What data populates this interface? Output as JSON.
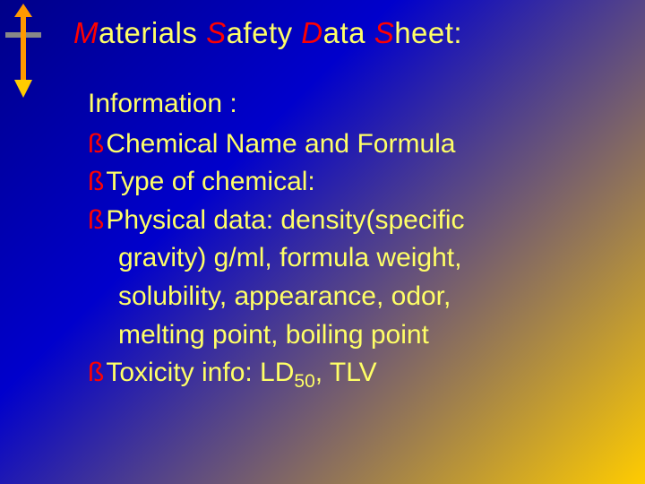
{
  "title": {
    "parts": [
      "M",
      "aterials ",
      "S",
      "afety ",
      "D",
      "ata ",
      "S",
      "heet:"
    ],
    "emphasis_indices": [
      0,
      2,
      4,
      6
    ],
    "emphasis_color": "#ff0000",
    "text_color": "#ffff66",
    "fontsize": 33
  },
  "body": {
    "intro": "Information :",
    "bullet_symbol": "ß",
    "bullet_color": "#ff0000",
    "items": [
      {
        "lines": [
          "Chemical Name and Formula"
        ]
      },
      {
        "lines": [
          "Type of chemical:"
        ]
      },
      {
        "lines": [
          "Physical data: density(specific",
          "gravity) g/ml, formula weight,",
          "solubility, appearance, odor,",
          "melting point, boiling point"
        ]
      },
      {
        "lines": [
          "Toxicity info:  LD",
          ", TLV"
        ],
        "inline": true,
        "subscript_after_first": "50"
      }
    ],
    "text_color": "#ffff66",
    "fontsize": 30
  },
  "decoration": {
    "arrow_color_top": "#888888",
    "arrow_color_shaft": "#ff9900",
    "arrow_color_head": "#ffcc00"
  },
  "background": {
    "gradient_from": "#000088",
    "gradient_mid": "#0000cc",
    "gradient_to": "#ffcc00"
  }
}
